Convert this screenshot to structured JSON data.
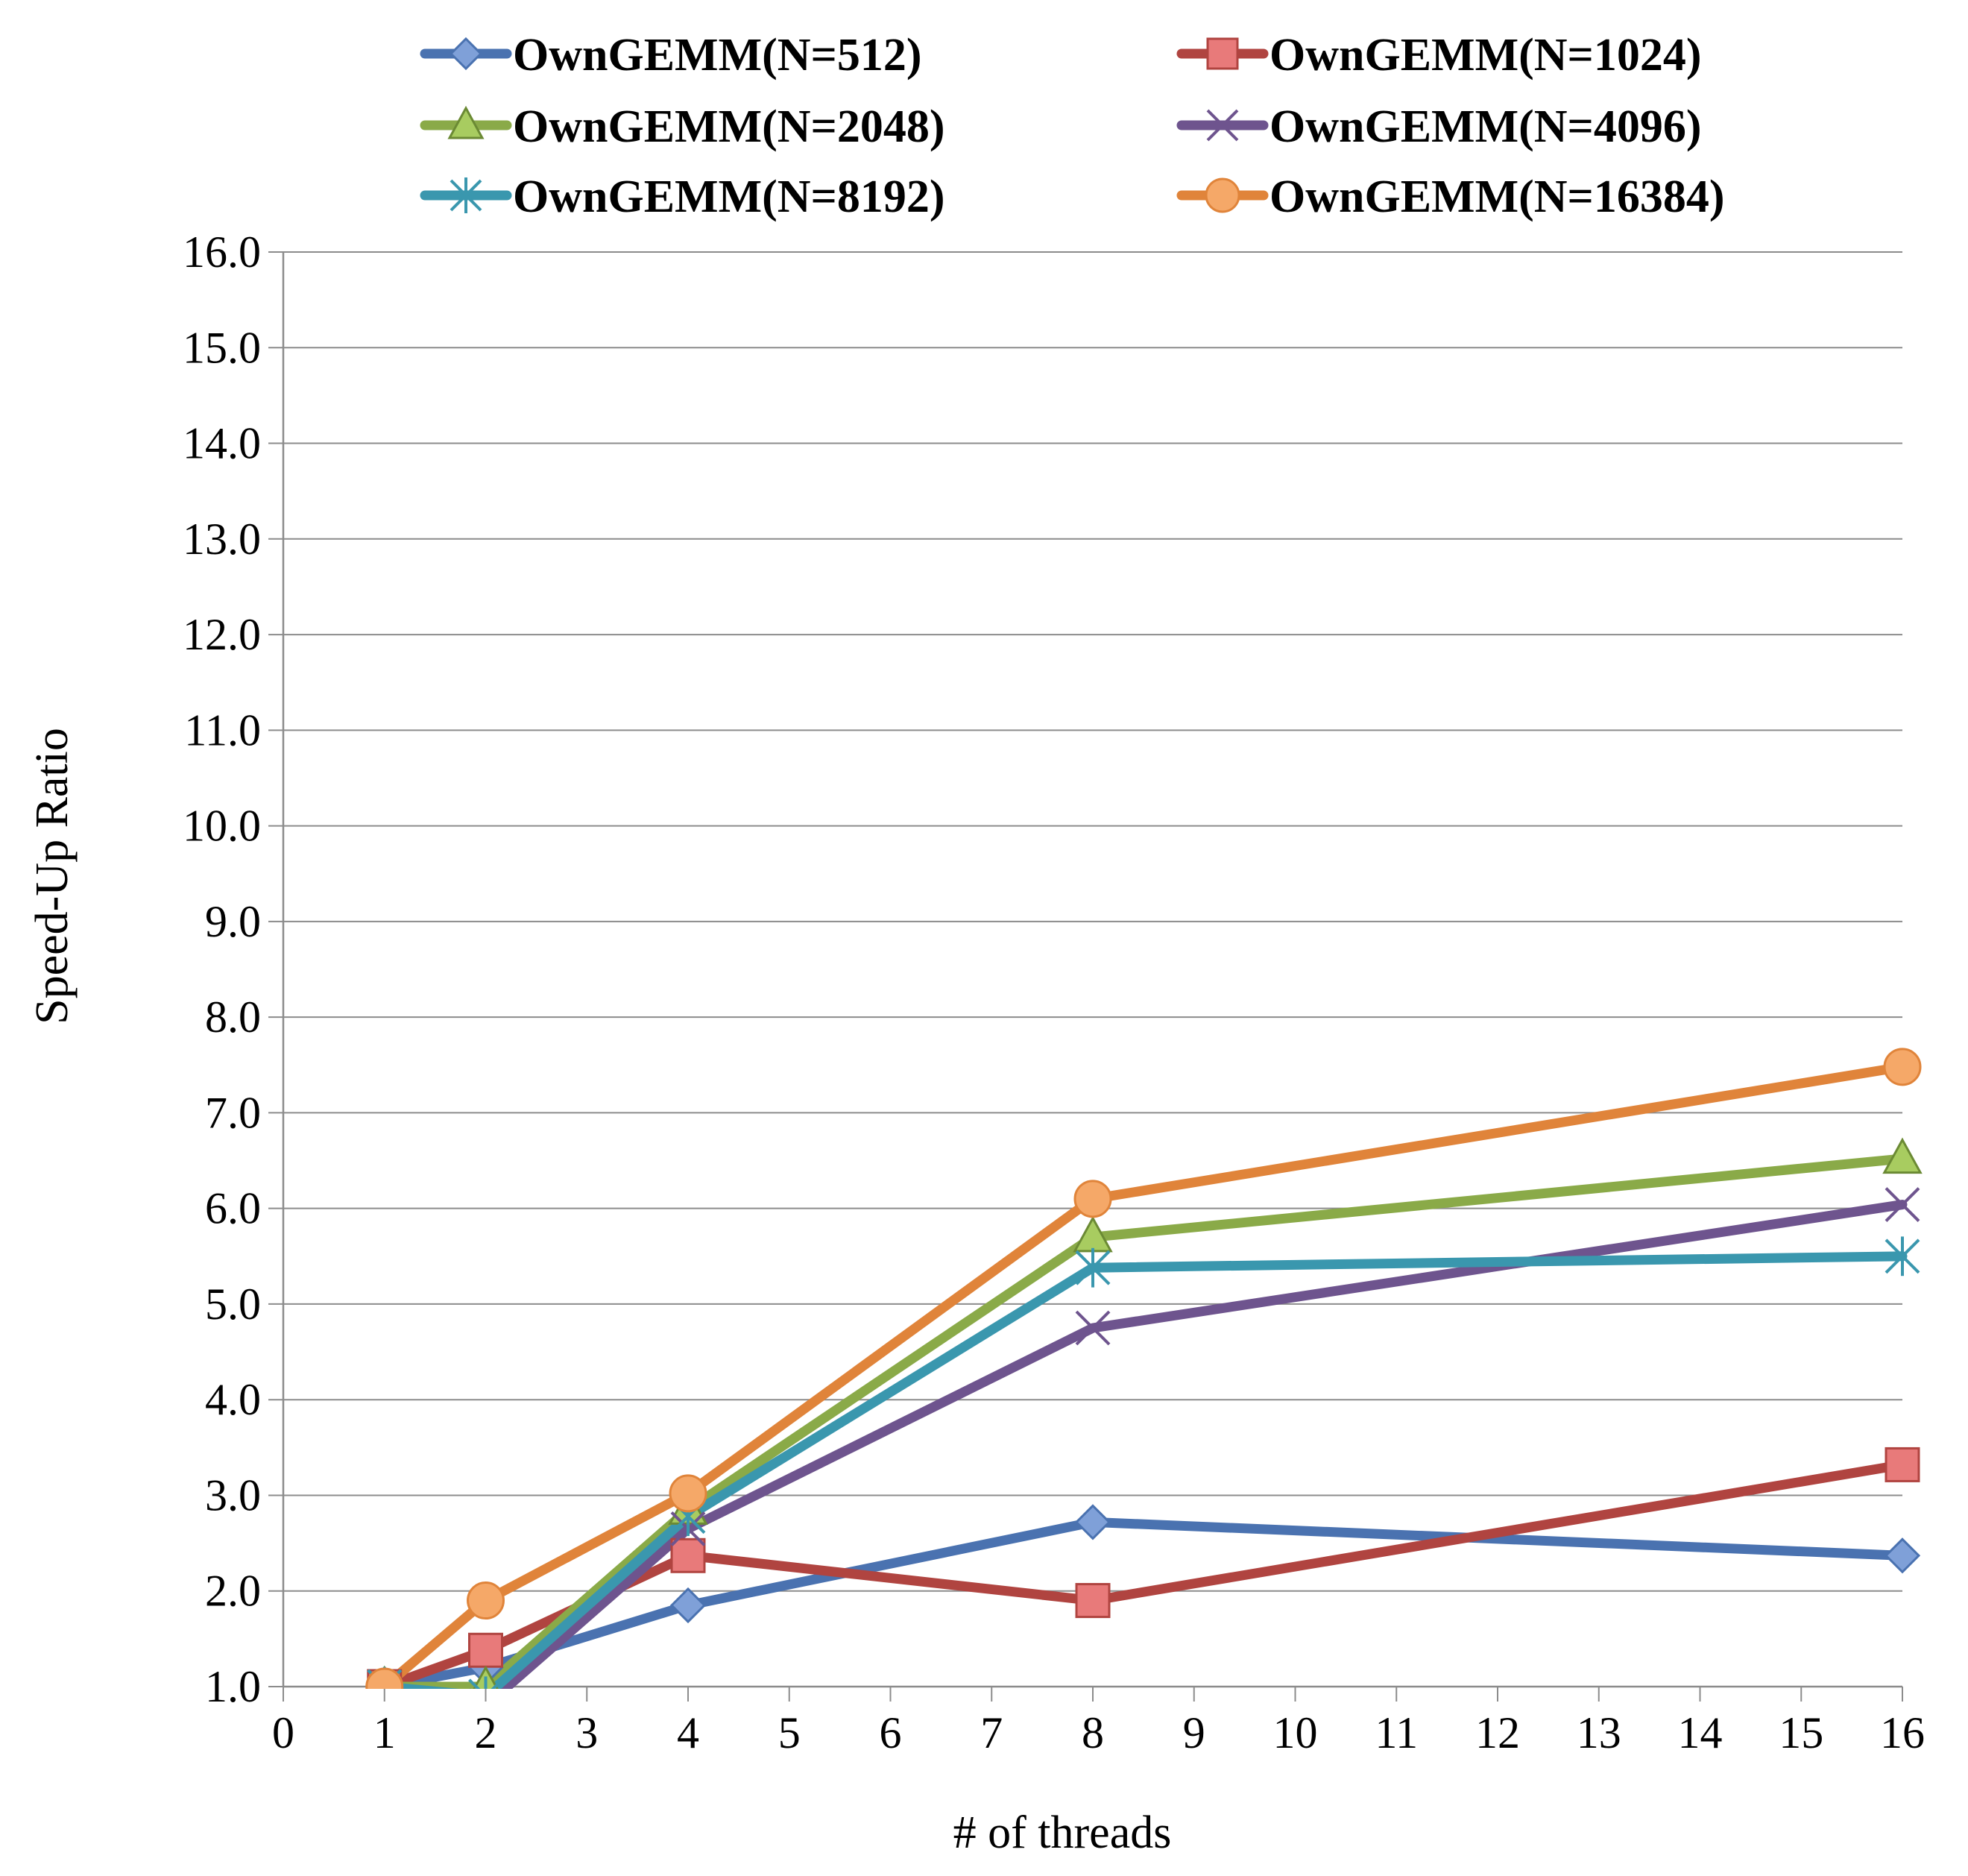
{
  "chart_data": {
    "type": "line",
    "title": "",
    "xlabel": "# of threads",
    "ylabel": "Speed-Up Ratio",
    "xlim": [
      0,
      16
    ],
    "ylim": [
      1.0,
      16.0
    ],
    "x_ticks": [
      "0",
      "1",
      "2",
      "3",
      "4",
      "5",
      "6",
      "7",
      "8",
      "9",
      "10",
      "11",
      "12",
      "13",
      "14",
      "15",
      "16"
    ],
    "y_ticks": [
      "1.0",
      "2.0",
      "3.0",
      "4.0",
      "5.0",
      "6.0",
      "7.0",
      "8.0",
      "9.0",
      "10.0",
      "11.0",
      "12.0",
      "13.0",
      "14.0",
      "15.0",
      "16.0"
    ],
    "grid": "horizontal",
    "legend_position": "top",
    "x": [
      1,
      2,
      4,
      8,
      16
    ],
    "series": [
      {
        "name": "OwnGEMM(N=512)",
        "values": [
          1.0,
          1.2,
          1.85,
          2.72,
          2.37
        ],
        "color": "#4A72B0",
        "marker": "diamond",
        "fill": "#7FA0D8"
      },
      {
        "name": "OwnGEMM(N=1024)",
        "values": [
          1.0,
          1.38,
          2.37,
          1.9,
          3.32
        ],
        "color": "#B04440",
        "marker": "square",
        "fill": "#E87A7A"
      },
      {
        "name": "OwnGEMM(N=2048)",
        "values": [
          1.0,
          1.0,
          2.85,
          5.7,
          6.52
        ],
        "color": "#8AAA48",
        "marker": "triangle",
        "fill": "#A8CC60"
      },
      {
        "name": "OwnGEMM(N=4096)",
        "values": [
          1.0,
          0.8,
          2.65,
          4.75,
          6.04
        ],
        "color": "#6E548E",
        "marker": "x",
        "fill": "#6E548E"
      },
      {
        "name": "OwnGEMM(N=8192)",
        "values": [
          1.0,
          0.9,
          2.78,
          5.38,
          5.5
        ],
        "color": "#3A97AE",
        "marker": "asterisk",
        "fill": "#3A97AE"
      },
      {
        "name": "OwnGEMM(N=16384)",
        "values": [
          1.0,
          1.9,
          3.02,
          6.1,
          7.48
        ],
        "color": "#E0843A",
        "marker": "circle",
        "fill": "#F5A868"
      }
    ]
  }
}
